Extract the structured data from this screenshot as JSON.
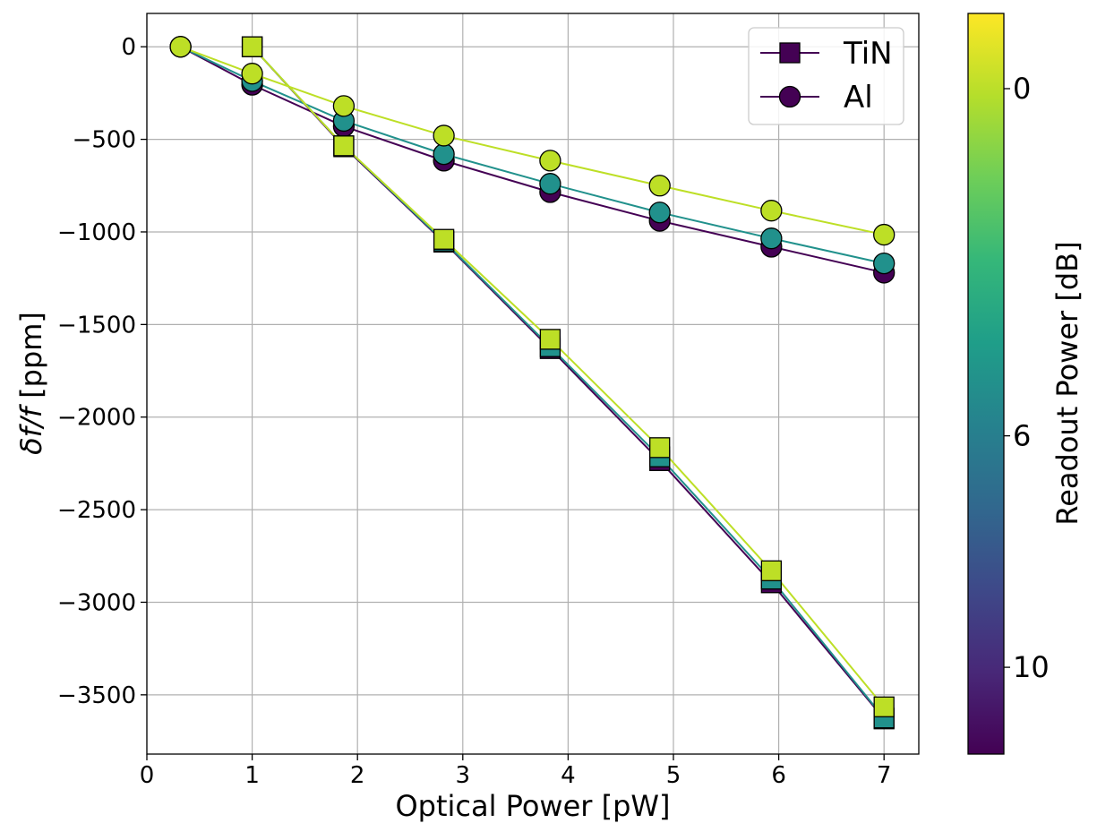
{
  "chart_data": {
    "type": "line",
    "xlabel": "Optical Power [pW]",
    "ylabel_symbol": "δf/f",
    "ylabel_unit": " [ppm]",
    "xlim": [
      0,
      7.33
    ],
    "ylim": [
      -3820,
      180
    ],
    "xticks": [
      0,
      1,
      2,
      3,
      4,
      5,
      6,
      7
    ],
    "yticks": [
      0,
      -500,
      -1000,
      -1500,
      -2000,
      -2500,
      -3000,
      -3500
    ],
    "xtick_labels": [
      "0",
      "1",
      "2",
      "3",
      "4",
      "5",
      "6",
      "7"
    ],
    "ytick_labels": [
      "0",
      "−500",
      "−1000",
      "−1500",
      "−2000",
      "−2500",
      "−3000",
      "−3500"
    ],
    "grid": true,
    "legend": {
      "position": "top-right",
      "entries": [
        {
          "label": "TiN",
          "marker": "square",
          "color": "#440154"
        },
        {
          "label": "Al",
          "marker": "circle",
          "color": "#440154"
        }
      ]
    },
    "colorbar": {
      "label": "Readout Power [dB]",
      "range": [
        11.5,
        -1.3
      ],
      "ticks": [
        0,
        6,
        10
      ],
      "tick_labels": [
        "0",
        "6",
        "10"
      ],
      "colormap": "viridis",
      "stops": [
        "#440154",
        "#482878",
        "#3e4989",
        "#31688e",
        "#26828e",
        "#1f9e89",
        "#35b779",
        "#6ece58",
        "#b5de2b",
        "#fde725"
      ]
    },
    "series": [
      {
        "name": "Al",
        "readout_db": 10,
        "marker": "circle",
        "color": "#440154",
        "x": [
          0.32,
          1.0,
          1.87,
          2.82,
          3.83,
          4.87,
          5.93,
          7.0
        ],
        "y": [
          0,
          -205,
          -430,
          -615,
          -785,
          -940,
          -1080,
          -1220
        ]
      },
      {
        "name": "Al",
        "readout_db": 6,
        "marker": "circle",
        "color": "#21918c",
        "x": [
          0.32,
          1.0,
          1.87,
          2.82,
          3.83,
          4.87,
          5.93,
          7.0
        ],
        "y": [
          0,
          -185,
          -400,
          -580,
          -740,
          -895,
          -1035,
          -1170
        ]
      },
      {
        "name": "Al",
        "readout_db": 0,
        "marker": "circle",
        "color": "#bddf26",
        "x": [
          0.32,
          1.0,
          1.87,
          2.82,
          3.83,
          4.87,
          5.93,
          7.0
        ],
        "y": [
          0,
          -145,
          -320,
          -480,
          -615,
          -750,
          -885,
          -1015
        ]
      },
      {
        "name": "TiN",
        "readout_db": 10,
        "marker": "square",
        "color": "#440154",
        "x": [
          1.0,
          1.87,
          2.82,
          3.83,
          4.87,
          5.93,
          7.0
        ],
        "y": [
          0,
          -540,
          -1055,
          -1630,
          -2235,
          -2895,
          -3630
        ]
      },
      {
        "name": "TiN",
        "readout_db": 6,
        "marker": "square",
        "color": "#21918c",
        "x": [
          1.0,
          1.87,
          2.82,
          3.83,
          4.87,
          5.93,
          7.0
        ],
        "y": [
          0,
          -535,
          -1050,
          -1620,
          -2215,
          -2875,
          -3625
        ]
      },
      {
        "name": "TiN",
        "readout_db": 0,
        "marker": "square",
        "color": "#bddf26",
        "x": [
          1.0,
          1.87,
          2.82,
          3.83,
          4.87,
          5.93,
          7.0
        ],
        "y": [
          0,
          -535,
          -1040,
          -1580,
          -2165,
          -2830,
          -3565
        ]
      }
    ]
  }
}
